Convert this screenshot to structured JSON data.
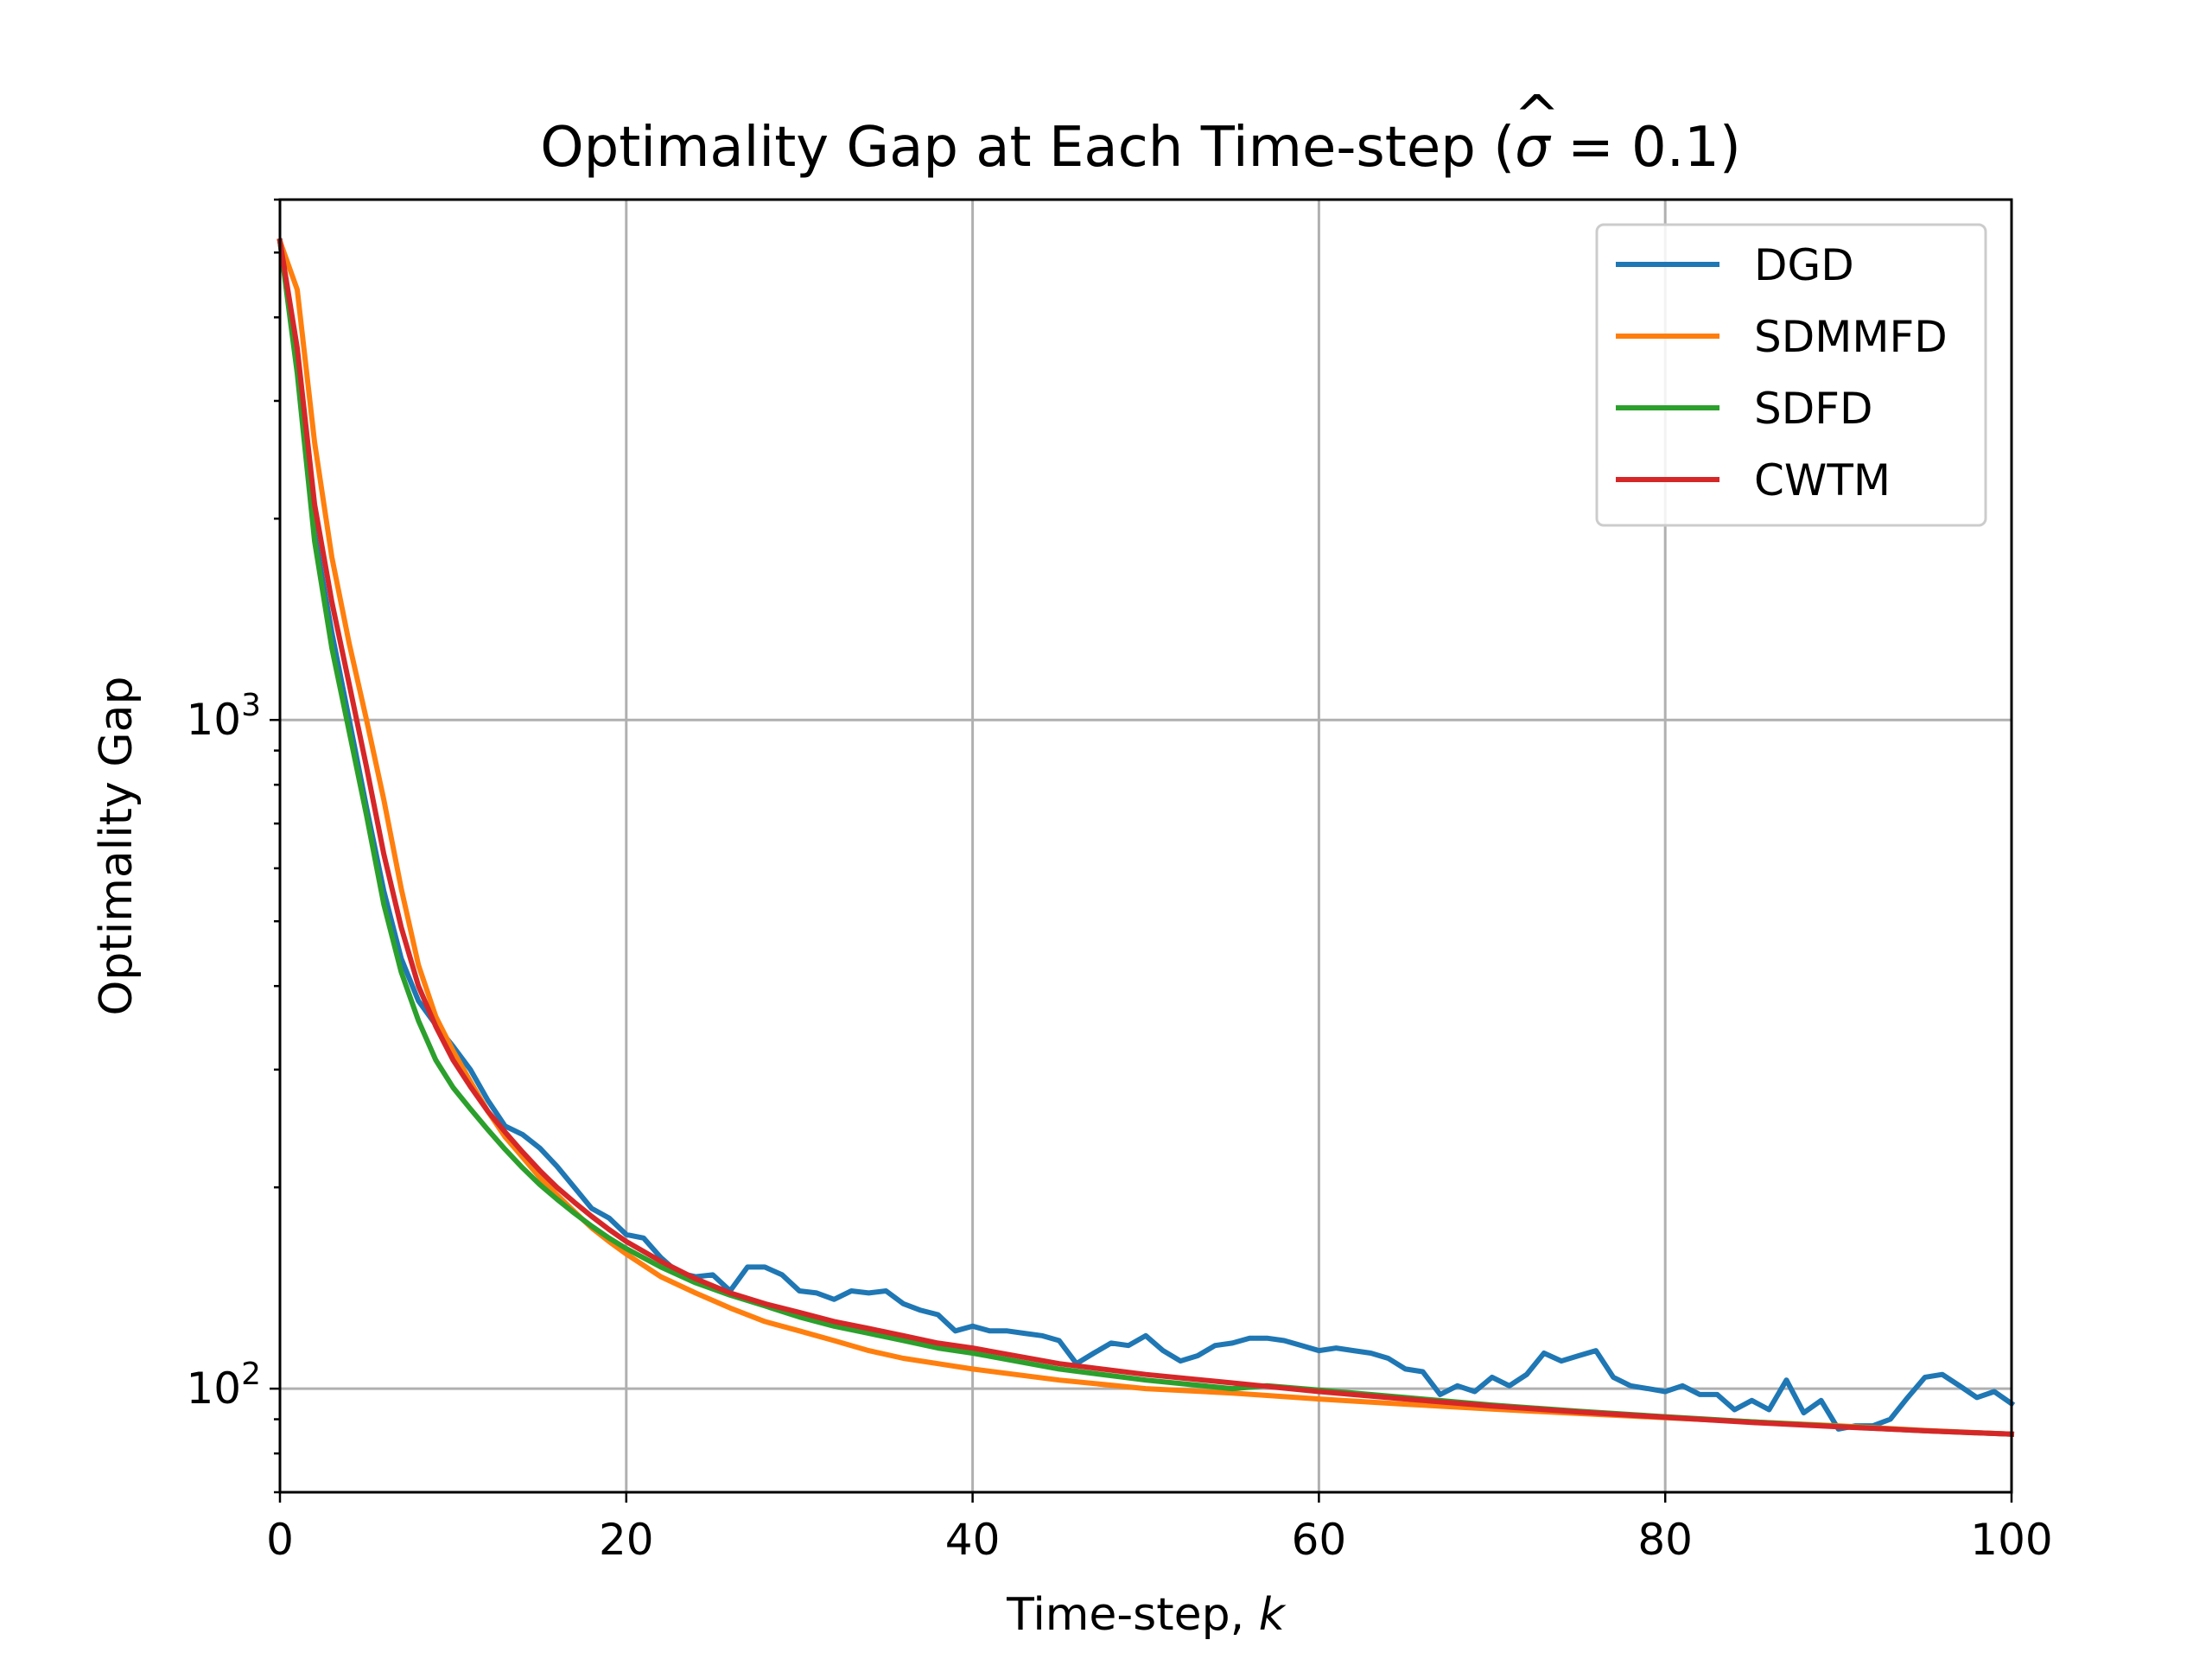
{
  "chart_data": {
    "type": "line",
    "title": "Optimality Gap at Each Time-step (σ̂ = 0.1)",
    "title_parts": {
      "prefix": "Optimality Gap at Each Time-step (",
      "symbol": "σ",
      "hat": "^",
      "suffix": " = 0.1)"
    },
    "xlabel": "Time-step, ",
    "xlabel_var": "k",
    "ylabel": "Optimality Gap",
    "xlim": [
      0,
      100
    ],
    "ylim": [
      70,
      6000
    ],
    "yscale": "log",
    "grid": true,
    "legend_position": "upper-right",
    "x_ticks": [
      {
        "value": 0,
        "label": "0"
      },
      {
        "value": 20,
        "label": "20"
      },
      {
        "value": 40,
        "label": "40"
      },
      {
        "value": 60,
        "label": "60"
      },
      {
        "value": 80,
        "label": "80"
      },
      {
        "value": 100,
        "label": "100"
      }
    ],
    "y_ticks": [
      {
        "value": 100,
        "base": "10",
        "exp": "2"
      },
      {
        "value": 1000,
        "base": "10",
        "exp": "3"
      }
    ],
    "series": [
      {
        "name": "DGD",
        "color": "#1f77b4",
        "x": [
          0,
          1,
          2,
          3,
          4,
          5,
          6,
          7,
          8,
          9,
          10,
          11,
          12,
          13,
          14,
          15,
          16,
          17,
          18,
          19,
          20,
          21,
          22,
          23,
          24,
          25,
          26,
          27,
          28,
          29,
          30,
          31,
          32,
          33,
          34,
          35,
          36,
          37,
          38,
          39,
          40,
          41,
          42,
          43,
          44,
          45,
          46,
          47,
          48,
          49,
          50,
          51,
          52,
          53,
          54,
          55,
          56,
          57,
          58,
          59,
          60,
          61,
          62,
          63,
          64,
          65,
          66,
          67,
          68,
          69,
          70,
          71,
          72,
          73,
          74,
          75,
          76,
          77,
          78,
          79,
          80,
          81,
          82,
          83,
          84,
          85,
          86,
          87,
          88,
          89,
          90,
          91,
          92,
          93,
          94,
          95,
          96,
          97,
          98,
          99,
          100
        ],
        "values": [
          5200,
          3400,
          1900,
          1350,
          1000,
          740,
          555,
          440,
          380,
          350,
          325,
          300,
          270,
          247,
          240,
          229,
          215,
          200,
          186,
          180,
          170,
          168,
          157,
          149,
          147,
          148,
          140,
          152,
          152,
          148,
          140,
          139,
          136,
          140,
          139,
          140,
          134,
          131,
          129,
          122,
          124,
          122,
          122,
          121,
          120,
          118,
          109,
          113,
          117,
          116,
          120,
          114,
          110,
          112,
          116,
          117,
          119,
          119,
          118,
          116,
          114,
          115,
          114,
          113,
          111,
          107,
          106,
          98,
          101,
          99,
          104,
          101,
          105,
          113,
          110,
          112,
          114,
          104,
          101,
          100,
          99,
          101,
          98,
          98,
          93,
          96,
          93,
          103,
          92,
          96,
          87,
          88,
          88,
          90,
          97,
          104,
          105,
          101,
          97,
          99,
          95
        ]
      },
      {
        "name": "SDMMFD",
        "color": "#ff7f0e",
        "x": [
          0,
          1,
          2,
          3,
          4,
          5,
          6,
          7,
          8,
          9,
          10,
          11,
          12,
          13,
          14,
          15,
          16,
          17,
          18,
          19,
          20,
          22,
          24,
          26,
          28,
          30,
          32,
          34,
          36,
          38,
          40,
          45,
          50,
          55,
          60,
          65,
          70,
          75,
          80,
          85,
          90,
          95,
          100
        ],
        "values": [
          5200,
          4400,
          2600,
          1750,
          1300,
          1000,
          760,
          560,
          430,
          360,
          320,
          288,
          260,
          238,
          222,
          207,
          195,
          184,
          174,
          166,
          159,
          147,
          139,
          132,
          126,
          122,
          118,
          114,
          111,
          109,
          107,
          103,
          100,
          98.5,
          96.5,
          94.8,
          93.2,
          91.8,
          90.5,
          89.2,
          88.0,
          86.6,
          85.5
        ]
      },
      {
        "name": "SDFD",
        "color": "#2ca02c",
        "x": [
          0,
          1,
          2,
          3,
          4,
          5,
          6,
          7,
          8,
          9,
          10,
          11,
          12,
          13,
          14,
          15,
          16,
          17,
          18,
          19,
          20,
          22,
          24,
          26,
          28,
          30,
          32,
          34,
          36,
          38,
          40,
          45,
          50,
          55,
          57,
          60,
          65,
          70,
          75,
          80,
          85,
          90,
          95,
          100
        ],
        "values": [
          5200,
          3300,
          1850,
          1280,
          960,
          720,
          530,
          420,
          355,
          310,
          282,
          262,
          244,
          228,
          214,
          202,
          192,
          183,
          175,
          168,
          162,
          152,
          144,
          138,
          133,
          128,
          124,
          121,
          118,
          115,
          113,
          107,
          103,
          100,
          101,
          99.5,
          97.0,
          94.5,
          92.5,
          90.8,
          89.2,
          87.8,
          86.5,
          85.5
        ]
      },
      {
        "name": "CWTM",
        "color": "#d62728",
        "x": [
          0,
          1,
          2,
          3,
          4,
          5,
          6,
          7,
          8,
          9,
          10,
          11,
          12,
          13,
          14,
          15,
          16,
          17,
          18,
          19,
          20,
          22,
          24,
          26,
          28,
          30,
          32,
          34,
          36,
          38,
          40,
          45,
          50,
          55,
          60,
          65,
          70,
          75,
          80,
          85,
          90,
          95,
          100
        ],
        "values": [
          5200,
          3600,
          2100,
          1500,
          1130,
          850,
          630,
          490,
          400,
          348,
          310,
          283,
          260,
          242,
          226,
          212,
          200,
          190,
          181,
          173,
          166,
          155,
          146,
          139,
          134,
          130,
          126,
          123,
          120,
          117,
          115,
          109,
          105,
          102,
          99.0,
          96.5,
          94.2,
          92.3,
          90.6,
          89.0,
          87.7,
          86.5,
          85.5
        ]
      }
    ]
  }
}
